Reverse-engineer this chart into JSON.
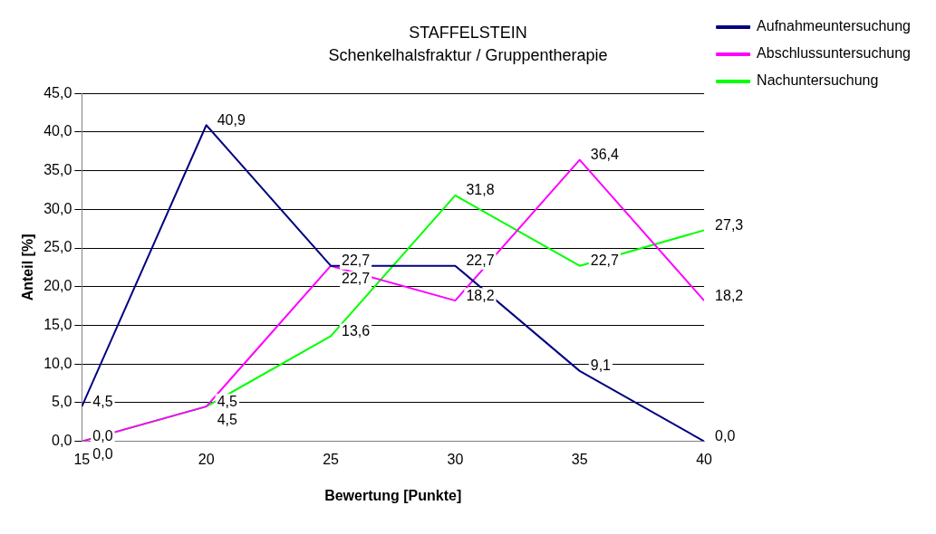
{
  "chart_data": {
    "type": "line",
    "title": "STAFFELSTEIN",
    "subtitle": "Schenkelhalsfraktur / Gruppentherapie",
    "xlabel": "Bewertung [Punkte]",
    "ylabel": "Anteil [%]",
    "x": [
      15,
      20,
      25,
      30,
      35,
      40
    ],
    "series": [
      {
        "name": "Aufnahmeuntersuchung",
        "color": "#000080",
        "values": [
          4.5,
          40.9,
          22.7,
          22.7,
          9.1,
          0.0
        ],
        "value_labels": [
          "4,5",
          "40,9",
          "22,7",
          "22,7",
          "9,1",
          "0,0"
        ]
      },
      {
        "name": "Abschlussuntersuchung",
        "color": "#ff00ff",
        "values": [
          0.0,
          4.5,
          22.7,
          18.2,
          36.4,
          18.2
        ],
        "value_labels": [
          "0,0",
          "4,5",
          "22,7",
          "18,2",
          "36,4",
          "18,2"
        ]
      },
      {
        "name": "Nachuntersuchung",
        "color": "#00ff00",
        "values": [
          0.0,
          4.5,
          13.6,
          31.8,
          22.7,
          27.3
        ],
        "value_labels": [
          "0,0",
          "4,5",
          "13,6",
          "31,8",
          "22,7",
          "27,3"
        ]
      }
    ],
    "xlim": [
      15,
      40
    ],
    "xticks": [
      15,
      20,
      25,
      30,
      35,
      40
    ],
    "ylim": [
      0,
      45
    ],
    "yticks": [
      {
        "value": 0,
        "label": "0,0"
      },
      {
        "value": 5,
        "label": "5,0"
      },
      {
        "value": 10,
        "label": "10,0"
      },
      {
        "value": 15,
        "label": "15,0"
      },
      {
        "value": 20,
        "label": "20,0"
      },
      {
        "value": 25,
        "label": "25,0"
      },
      {
        "value": 30,
        "label": "30,0"
      },
      {
        "value": 35,
        "label": "35,0"
      },
      {
        "value": 40,
        "label": "40,0"
      },
      {
        "value": 45,
        "label": "45,0"
      }
    ],
    "grid": "y",
    "legend": "top right",
    "marker": "none",
    "line_style": "solid"
  }
}
